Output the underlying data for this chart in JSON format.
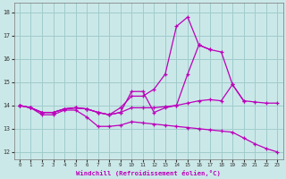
{
  "xlabel": "Windchill (Refroidissement éolien,°C)",
  "background_color": "#cbe8e8",
  "grid_color": "#a0cccc",
  "line_color": "#bb00bb",
  "xlim": [
    -0.5,
    23.5
  ],
  "ylim": [
    11.7,
    18.4
  ],
  "yticks": [
    12,
    13,
    14,
    15,
    16,
    17,
    18
  ],
  "xticks": [
    0,
    1,
    2,
    3,
    4,
    5,
    6,
    7,
    8,
    9,
    10,
    11,
    12,
    13,
    14,
    15,
    16,
    17,
    18,
    19,
    20,
    21,
    22,
    23
  ],
  "series": [
    {
      "x": [
        0,
        1,
        2,
        3,
        4,
        5,
        6,
        7,
        8,
        9,
        10,
        11,
        12,
        13,
        14,
        15,
        16,
        17,
        18,
        19,
        20,
        21,
        22,
        23
      ],
      "y": [
        14.0,
        13.9,
        13.6,
        13.6,
        13.8,
        13.8,
        13.5,
        13.1,
        13.1,
        13.15,
        13.3,
        13.25,
        13.2,
        13.15,
        13.1,
        13.05,
        13.0,
        12.95,
        12.9,
        12.85,
        12.6,
        12.35,
        12.15,
        12.0
      ]
    },
    {
      "x": [
        0,
        1,
        2,
        3,
        4,
        5,
        6,
        7,
        8,
        9,
        10,
        11,
        12,
        13,
        14,
        15,
        16,
        17,
        18,
        19,
        20,
        21,
        22,
        23
      ],
      "y": [
        14.0,
        13.9,
        13.7,
        13.7,
        13.85,
        13.9,
        13.85,
        13.7,
        13.6,
        13.7,
        13.9,
        13.9,
        13.9,
        13.95,
        14.0,
        14.1,
        14.2,
        14.25,
        14.2,
        14.9,
        14.2,
        14.15,
        14.1,
        14.1
      ]
    },
    {
      "x": [
        0,
        1,
        2,
        3,
        4,
        5,
        6,
        7,
        8,
        9,
        10,
        11,
        12,
        13,
        14,
        15,
        16,
        17,
        18,
        19,
        20
      ],
      "y": [
        14.0,
        13.9,
        13.7,
        13.7,
        13.85,
        13.9,
        13.85,
        13.7,
        13.6,
        13.7,
        14.6,
        14.6,
        13.7,
        13.9,
        14.0,
        15.35,
        16.6,
        16.4,
        16.3,
        14.9,
        14.2
      ]
    },
    {
      "x": [
        0,
        1,
        2,
        3,
        4,
        5,
        6,
        7,
        8,
        9,
        10,
        11,
        12,
        13,
        14,
        15,
        16,
        17
      ],
      "y": [
        14.0,
        13.9,
        13.7,
        13.7,
        13.85,
        13.9,
        13.85,
        13.7,
        13.6,
        13.9,
        14.4,
        14.4,
        14.7,
        15.35,
        17.4,
        17.8,
        16.6,
        16.4
      ]
    }
  ]
}
